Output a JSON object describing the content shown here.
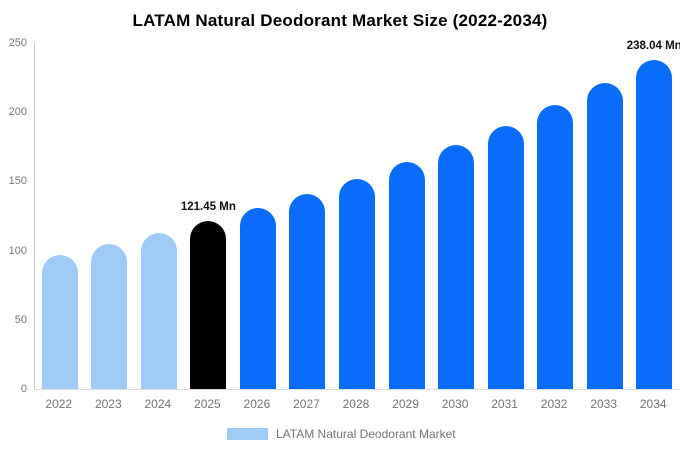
{
  "chart_data": {
    "type": "bar",
    "title": "LATAM Natural Deodorant Market Size (2022-2034)",
    "categories": [
      "2022",
      "2023",
      "2024",
      "2025",
      "2026",
      "2027",
      "2028",
      "2029",
      "2030",
      "2031",
      "2032",
      "2033",
      "2034"
    ],
    "values": [
      97,
      104.6,
      112.7,
      121.45,
      130.9,
      141.1,
      152,
      163.8,
      176.6,
      190.3,
      205.1,
      221,
      238.04
    ],
    "value_labels": {
      "2025": "121.45 Mn",
      "2034": "238.04 Mn"
    },
    "bar_colors": [
      "#A1CBF7",
      "#A1CBF7",
      "#A1CBF7",
      "#000000",
      "#0A6CFB",
      "#0A6CFB",
      "#0A6CFB",
      "#0A6CFB",
      "#0A6CFB",
      "#0A6CFB",
      "#0A6CFB",
      "#0A6CFB",
      "#0A6CFB"
    ],
    "palette": {
      "historical": "#A1CBF7",
      "base_year_highlight": "#000000",
      "forecast": "#0A6CFB"
    },
    "ylim": [
      0,
      250
    ],
    "yticks": [
      0,
      50,
      100,
      150,
      200,
      250
    ],
    "grid": false,
    "xlabel": "",
    "ylabel": "",
    "legend_position": "bottom",
    "legend": {
      "label": "LATAM Natural Deodorant Market",
      "swatch_color": "#A1CBF7"
    },
    "axis_color": "#cccccc",
    "tick_text_color": "#757575"
  }
}
